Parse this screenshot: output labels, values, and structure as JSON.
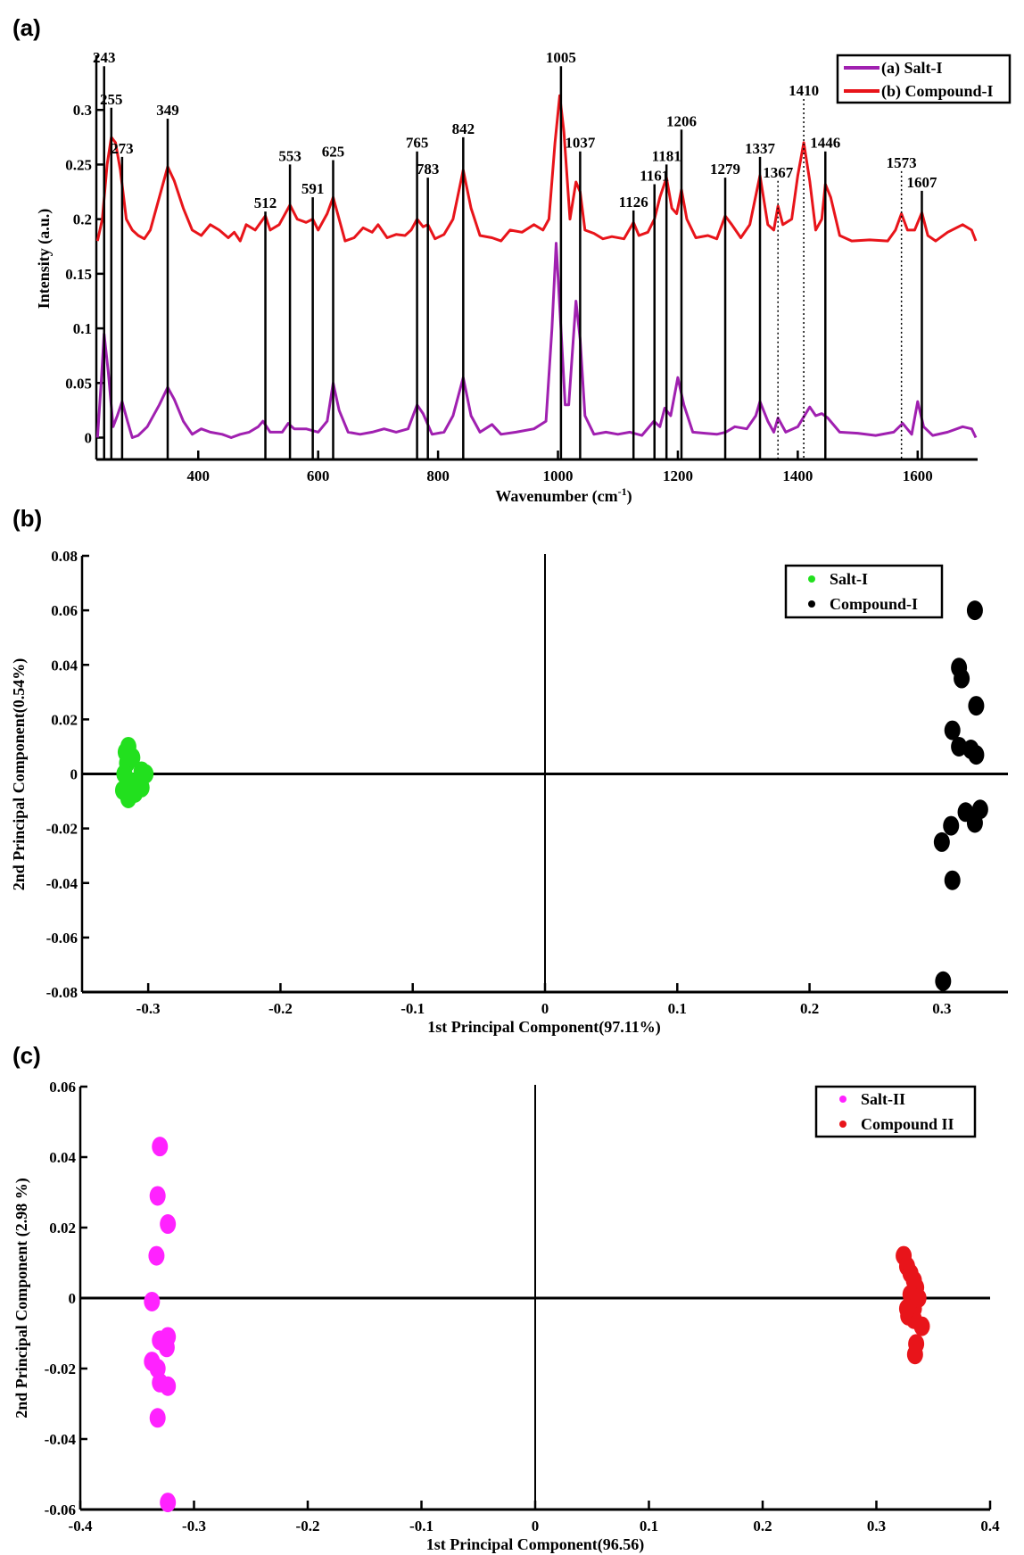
{
  "chart_data": [
    {
      "panel": "(a)",
      "type": "line",
      "xlabel": "Wavenumber (cm",
      "xlabel_sup": "-1",
      "xlabel_end": ")",
      "ylabel": "Intensity (a.u.)",
      "xlim": [
        230,
        1700
      ],
      "ylim": [
        -0.02,
        0.35
      ],
      "xticks": [
        400,
        600,
        800,
        1000,
        1200,
        1400,
        1600
      ],
      "yticks": [
        0,
        0.05,
        0.1,
        0.15,
        0.2,
        0.25,
        0.3
      ],
      "ytick_labels": [
        "0",
        "0.05",
        "0.1",
        "0.15",
        "0.2",
        "0.25",
        "0.3"
      ],
      "grid": false,
      "legend": "top-right",
      "series": [
        {
          "name": "(a) Salt-I",
          "color": "#a020b0",
          "x": [
            232,
            238,
            243,
            250,
            258,
            265,
            273,
            282,
            290,
            300,
            315,
            335,
            349,
            360,
            375,
            390,
            405,
            420,
            440,
            455,
            470,
            485,
            500,
            508,
            520,
            540,
            550,
            560,
            580,
            600,
            615,
            625,
            635,
            650,
            670,
            690,
            710,
            730,
            750,
            765,
            775,
            790,
            810,
            825,
            842,
            855,
            870,
            890,
            905,
            930,
            960,
            980,
            990,
            997,
            1003,
            1012,
            1018,
            1030,
            1037,
            1045,
            1060,
            1080,
            1100,
            1120,
            1140,
            1160,
            1170,
            1178,
            1188,
            1200,
            1210,
            1225,
            1245,
            1265,
            1280,
            1295,
            1315,
            1330,
            1337,
            1350,
            1360,
            1367,
            1380,
            1400,
            1420,
            1430,
            1440,
            1450,
            1470,
            1500,
            1530,
            1560,
            1575,
            1590,
            1600,
            1610,
            1625,
            1650,
            1675,
            1690,
            1697
          ],
          "y": [
            0,
            0.05,
            0.095,
            0.06,
            0.01,
            0.02,
            0.033,
            0.015,
            0,
            0.002,
            0.01,
            0.03,
            0.046,
            0.035,
            0.015,
            0.003,
            0.008,
            0.005,
            0.003,
            0,
            0.003,
            0.005,
            0.01,
            0.015,
            0.005,
            0.005,
            0.013,
            0.008,
            0.008,
            0.005,
            0.015,
            0.05,
            0.025,
            0.005,
            0.003,
            0.005,
            0.008,
            0.005,
            0.008,
            0.03,
            0.022,
            0.003,
            0.005,
            0.02,
            0.055,
            0.02,
            0.005,
            0.012,
            0.003,
            0.005,
            0.008,
            0.015,
            0.1,
            0.178,
            0.12,
            0.03,
            0.03,
            0.125,
            0.09,
            0.02,
            0.003,
            0.005,
            0.003,
            0.005,
            0.002,
            0.015,
            0.01,
            0.027,
            0.02,
            0.055,
            0.03,
            0.005,
            0.004,
            0.003,
            0.005,
            0.01,
            0.008,
            0.02,
            0.033,
            0.015,
            0.005,
            0.018,
            0.005,
            0.01,
            0.028,
            0.02,
            0.022,
            0.018,
            0.005,
            0.004,
            0.002,
            0.005,
            0.013,
            0.003,
            0.033,
            0.01,
            0.002,
            0.005,
            0.01,
            0.008,
            0
          ]
        },
        {
          "name": "(b) Compound-I",
          "color": "#e8141a",
          "x": [
            232,
            240,
            248,
            255,
            262,
            270,
            280,
            290,
            300,
            310,
            320,
            335,
            349,
            360,
            375,
            390,
            405,
            420,
            435,
            450,
            460,
            470,
            480,
            495,
            512,
            520,
            535,
            553,
            565,
            580,
            591,
            600,
            615,
            625,
            635,
            645,
            660,
            675,
            690,
            700,
            715,
            730,
            745,
            755,
            765,
            775,
            783,
            795,
            810,
            825,
            842,
            855,
            870,
            890,
            905,
            920,
            940,
            960,
            975,
            985,
            995,
            1003,
            1010,
            1020,
            1030,
            1037,
            1045,
            1060,
            1075,
            1090,
            1110,
            1126,
            1135,
            1150,
            1161,
            1170,
            1181,
            1190,
            1198,
            1206,
            1215,
            1230,
            1250,
            1265,
            1279,
            1290,
            1305,
            1320,
            1337,
            1350,
            1360,
            1367,
            1375,
            1390,
            1400,
            1410,
            1420,
            1430,
            1440,
            1446,
            1455,
            1470,
            1490,
            1520,
            1550,
            1563,
            1573,
            1583,
            1595,
            1607,
            1617,
            1630,
            1650,
            1675,
            1690,
            1697
          ],
          "y": [
            0.18,
            0.2,
            0.25,
            0.275,
            0.27,
            0.245,
            0.2,
            0.19,
            0.185,
            0.182,
            0.19,
            0.22,
            0.248,
            0.235,
            0.21,
            0.19,
            0.185,
            0.195,
            0.19,
            0.183,
            0.188,
            0.18,
            0.195,
            0.19,
            0.203,
            0.19,
            0.195,
            0.213,
            0.2,
            0.197,
            0.2,
            0.19,
            0.205,
            0.22,
            0.2,
            0.18,
            0.183,
            0.192,
            0.188,
            0.195,
            0.183,
            0.186,
            0.185,
            0.19,
            0.2,
            0.193,
            0.195,
            0.182,
            0.186,
            0.2,
            0.245,
            0.21,
            0.185,
            0.183,
            0.18,
            0.19,
            0.188,
            0.195,
            0.19,
            0.2,
            0.27,
            0.313,
            0.28,
            0.2,
            0.234,
            0.225,
            0.19,
            0.187,
            0.182,
            0.184,
            0.182,
            0.197,
            0.185,
            0.188,
            0.2,
            0.22,
            0.238,
            0.21,
            0.205,
            0.227,
            0.2,
            0.183,
            0.185,
            0.182,
            0.203,
            0.195,
            0.183,
            0.195,
            0.24,
            0.195,
            0.19,
            0.212,
            0.195,
            0.2,
            0.24,
            0.27,
            0.235,
            0.19,
            0.2,
            0.232,
            0.22,
            0.185,
            0.18,
            0.181,
            0.18,
            0.19,
            0.205,
            0.19,
            0.19,
            0.206,
            0.185,
            0.18,
            0.188,
            0.195,
            0.19,
            0.18
          ]
        }
      ],
      "peaks": [
        {
          "label": "243",
          "x": 243,
          "top": 0.34,
          "style": "solid"
        },
        {
          "label": "255",
          "x": 255,
          "top": 0.302,
          "style": "solid"
        },
        {
          "label": "273",
          "x": 273,
          "top": 0.257,
          "style": "solid"
        },
        {
          "label": "349",
          "x": 349,
          "top": 0.292,
          "style": "solid"
        },
        {
          "label": "512",
          "x": 512,
          "top": 0.207,
          "style": "solid"
        },
        {
          "label": "553",
          "x": 553,
          "top": 0.25,
          "style": "solid"
        },
        {
          "label": "591",
          "x": 591,
          "top": 0.22,
          "style": "solid"
        },
        {
          "label": "625",
          "x": 625,
          "top": 0.254,
          "style": "solid"
        },
        {
          "label": "765",
          "x": 765,
          "top": 0.262,
          "style": "solid"
        },
        {
          "label": "783",
          "x": 783,
          "top": 0.238,
          "style": "solid"
        },
        {
          "label": "842",
          "x": 842,
          "top": 0.275,
          "style": "solid"
        },
        {
          "label": "1005",
          "x": 1005,
          "top": 0.34,
          "style": "solid"
        },
        {
          "label": "1037",
          "x": 1037,
          "top": 0.262,
          "style": "solid"
        },
        {
          "label": "1126",
          "x": 1126,
          "top": 0.208,
          "style": "solid"
        },
        {
          "label": "1161",
          "x": 1161,
          "top": 0.232,
          "style": "solid"
        },
        {
          "label": "1181",
          "x": 1181,
          "top": 0.25,
          "style": "solid"
        },
        {
          "label": "1206",
          "x": 1206,
          "top": 0.282,
          "style": "solid"
        },
        {
          "label": "1279",
          "x": 1279,
          "top": 0.238,
          "style": "solid"
        },
        {
          "label": "1337",
          "x": 1337,
          "top": 0.257,
          "style": "solid"
        },
        {
          "label": "1367",
          "x": 1367,
          "top": 0.235,
          "style": "dotted"
        },
        {
          "label": "1410",
          "x": 1410,
          "top": 0.31,
          "style": "dotted"
        },
        {
          "label": "1446",
          "x": 1446,
          "top": 0.262,
          "style": "solid"
        },
        {
          "label": "1573",
          "x": 1573,
          "top": 0.226,
          "style": "dotted"
        },
        {
          "label": "1607",
          "x": 1607,
          "top": 0.226,
          "style": "solid"
        }
      ]
    },
    {
      "panel": "(b)",
      "type": "scatter",
      "xlabel": "1st Principal Component(97.11%)",
      "ylabel": "2nd Principal Component(0.54%)",
      "xlim": [
        -0.35,
        0.35
      ],
      "ylim": [
        -0.08,
        0.08
      ],
      "xticks": [
        -0.3,
        -0.2,
        -0.1,
        0,
        0.1,
        0.2,
        0.3
      ],
      "xtick_labels": [
        "-0.3",
        "-0.2",
        "-0.1",
        "0",
        "0.1",
        "0.2",
        "0.3"
      ],
      "yticks": [
        -0.08,
        -0.06,
        -0.04,
        -0.02,
        0,
        0.02,
        0.04,
        0.06,
        0.08
      ],
      "ytick_labels": [
        "-0.08",
        "-0.06",
        "-0.04",
        "-0.02",
        "0",
        "0.02",
        "0.04",
        "0.06",
        "0.08"
      ],
      "grid": false,
      "legend": "top-right",
      "series": [
        {
          "name": "Salt-I",
          "color": "#22e01e",
          "x": [
            -0.315,
            -0.317,
            -0.316,
            -0.318,
            -0.305,
            -0.302,
            -0.313,
            -0.319,
            -0.305,
            -0.31,
            -0.315,
            -0.312
          ],
          "y": [
            0.01,
            0.008,
            0.004,
            0.0,
            0.001,
            0.0,
            -0.003,
            -0.006,
            -0.005,
            -0.007,
            -0.009,
            0.006
          ]
        },
        {
          "name": "Compound-I",
          "color": "#000000",
          "x": [
            0.325,
            0.313,
            0.315,
            0.326,
            0.308,
            0.313,
            0.322,
            0.326,
            0.318,
            0.329,
            0.325,
            0.307,
            0.3,
            0.308,
            0.301
          ],
          "y": [
            0.06,
            0.039,
            0.035,
            0.025,
            0.016,
            0.01,
            0.009,
            0.007,
            -0.014,
            -0.013,
            -0.018,
            -0.019,
            -0.025,
            -0.039,
            -0.076
          ]
        }
      ]
    },
    {
      "panel": "(c)",
      "type": "scatter",
      "xlabel": "1st Principal Component(96.56)",
      "ylabel": "2nd Principal Component (2.98 %)",
      "xlim": [
        -0.4,
        0.4
      ],
      "ylim": [
        -0.06,
        0.06
      ],
      "xticks": [
        -0.4,
        -0.3,
        -0.2,
        -0.1,
        0,
        0.1,
        0.2,
        0.3,
        0.4
      ],
      "xtick_labels": [
        "-0.4",
        "-0.3",
        "-0.2",
        "-0.1",
        "0",
        "0.1",
        "0.2",
        "0.3",
        "0.4"
      ],
      "yticks": [
        -0.06,
        -0.04,
        -0.02,
        0,
        0.02,
        0.04,
        0.06
      ],
      "ytick_labels": [
        "-0.06",
        "-0.04",
        "-0.02",
        "0",
        "0.02",
        "0.04",
        "0.06"
      ],
      "grid": false,
      "legend": "top-right",
      "series": [
        {
          "name": "Salt-II",
          "color": "#ff22ff",
          "x": [
            -0.33,
            -0.332,
            -0.323,
            -0.333,
            -0.337,
            -0.323,
            -0.33,
            -0.324,
            -0.337,
            -0.332,
            -0.33,
            -0.323,
            -0.332,
            -0.323
          ],
          "y": [
            0.043,
            0.029,
            0.021,
            0.012,
            -0.001,
            -0.011,
            -0.012,
            -0.014,
            -0.018,
            -0.02,
            -0.024,
            -0.025,
            -0.034,
            -0.058
          ]
        },
        {
          "name": "Compound II",
          "color": "#e8141a",
          "x": [
            0.324,
            0.327,
            0.33,
            0.333,
            0.335,
            0.33,
            0.333,
            0.328,
            0.333,
            0.34,
            0.335,
            0.334,
            0.327,
            0.337
          ],
          "y": [
            0.012,
            0.009,
            0.007,
            0.005,
            0.003,
            0.001,
            -0.003,
            -0.005,
            -0.006,
            -0.008,
            -0.013,
            -0.016,
            -0.003,
            0.0
          ]
        }
      ]
    }
  ]
}
